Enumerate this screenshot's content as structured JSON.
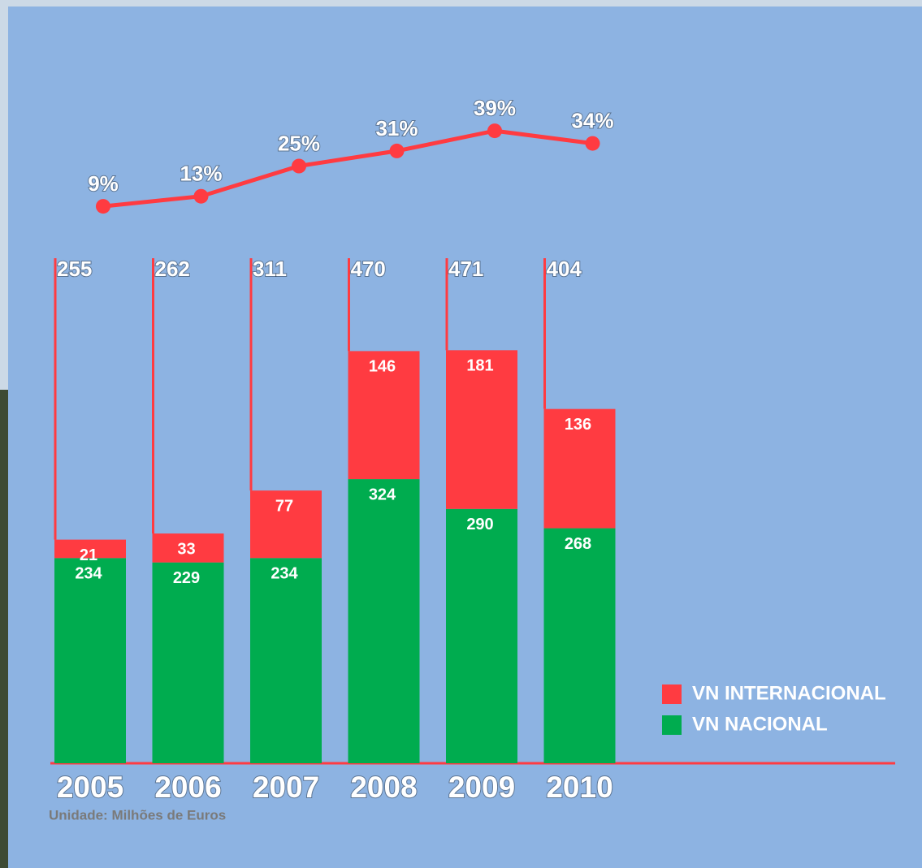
{
  "chart_data": {
    "type": "stacked_bar",
    "categories": [
      "2005",
      "2006",
      "2007",
      "2008",
      "2009",
      "2010"
    ],
    "series": [
      {
        "name": "VN INTERNACIONAL",
        "color": "#ff3b41",
        "values": [
          21,
          33,
          77,
          146,
          181,
          136
        ]
      },
      {
        "name": "VN NACIONAL",
        "color": "#00ac4f",
        "values": [
          234,
          229,
          234,
          324,
          290,
          268
        ]
      }
    ],
    "totals": [
      255,
      262,
      311,
      470,
      471,
      404
    ],
    "share": {
      "color": "#ff3b41",
      "values": [
        9,
        13,
        25,
        31,
        39,
        34
      ],
      "value_labels": [
        "9%",
        "13%",
        "25%",
        "31%",
        "39%",
        "34%"
      ]
    },
    "note": "Unidade: Milhões de Euros"
  }
}
